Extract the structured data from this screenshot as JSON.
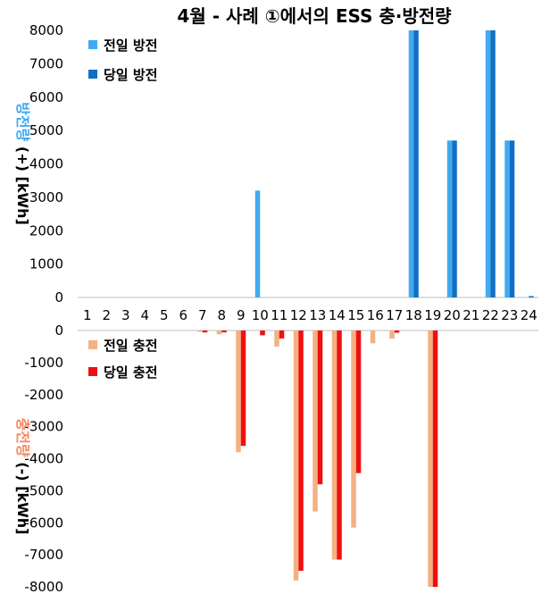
{
  "chart_data": {
    "type": "bar",
    "title": "4월 - 사례 ①에서의 ESS 충·방전량",
    "categories": [
      "1",
      "2",
      "3",
      "4",
      "5",
      "6",
      "7",
      "8",
      "9",
      "10",
      "11",
      "12",
      "13",
      "14",
      "15",
      "16",
      "17",
      "18",
      "19",
      "20",
      "21",
      "22",
      "23",
      "24"
    ],
    "panels": [
      {
        "ylabel_prefix": "방전량",
        "ylabel_suffix": "(+) [kWh]",
        "ylabel_color": "#41aaf0",
        "ylim": [
          0,
          8000
        ],
        "yticks": [
          "8000",
          "7000",
          "6000",
          "5000",
          "4000",
          "3000",
          "2000",
          "1000",
          "0"
        ],
        "ytick_values": [
          8000,
          7000,
          6000,
          5000,
          4000,
          3000,
          2000,
          1000,
          0
        ],
        "series": [
          {
            "name": "전일 방전",
            "color": "#41aaf0",
            "values": [
              0,
              0,
              0,
              0,
              0,
              0,
              0,
              0,
              0,
              3200,
              0,
              0,
              0,
              0,
              0,
              0,
              0,
              8000,
              0,
              4700,
              0,
              8000,
              4700,
              0
            ]
          },
          {
            "name": "당일 방전",
            "color": "#0f6fc4",
            "values": [
              0,
              0,
              0,
              0,
              0,
              0,
              0,
              0,
              0,
              0,
              0,
              0,
              0,
              0,
              0,
              0,
              0,
              8000,
              0,
              4700,
              0,
              8000,
              4700,
              40
            ]
          }
        ]
      },
      {
        "ylabel_prefix": "충전량",
        "ylabel_suffix": "(-) [kWh]",
        "ylabel_color": "#f08c64",
        "ylim": [
          -8000,
          0
        ],
        "yticks": [
          "0",
          "-1000",
          "-2000",
          "-3000",
          "-4000",
          "-5000",
          "-6000",
          "-7000",
          "-8000"
        ],
        "ytick_values": [
          0,
          -1000,
          -2000,
          -3000,
          -4000,
          -5000,
          -6000,
          -7000,
          -8000
        ],
        "series": [
          {
            "name": "전일 충전",
            "color": "#f4b183",
            "values": [
              0,
              0,
              0,
              0,
              0,
              0,
              -40,
              -120,
              -3800,
              0,
              -500,
              -7800,
              -5650,
              -7150,
              -6150,
              -400,
              -250,
              0,
              -8000,
              0,
              0,
              0,
              0,
              0
            ]
          },
          {
            "name": "당일 충전",
            "color": "#ee1111",
            "values": [
              0,
              0,
              0,
              0,
              0,
              0,
              -60,
              -60,
              -3600,
              -150,
              -250,
              -7500,
              -4800,
              -7150,
              -4450,
              0,
              -70,
              0,
              -8000,
              0,
              0,
              0,
              0,
              0
            ]
          }
        ]
      }
    ]
  }
}
